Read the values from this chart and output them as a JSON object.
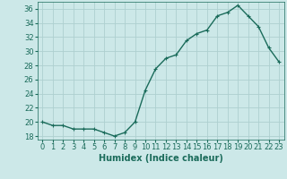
{
  "x": [
    0,
    1,
    2,
    3,
    4,
    5,
    6,
    7,
    8,
    9,
    10,
    11,
    12,
    13,
    14,
    15,
    16,
    17,
    18,
    19,
    20,
    21,
    22,
    23
  ],
  "y": [
    20,
    19.5,
    19.5,
    19,
    19,
    19,
    18.5,
    18,
    18.5,
    20,
    24.5,
    27.5,
    29,
    29.5,
    31.5,
    32.5,
    33,
    35,
    35.5,
    36.5,
    35,
    33.5,
    30.5,
    28.5
  ],
  "line_color": "#1a6b5a",
  "marker": "+",
  "marker_size": 3,
  "linewidth": 1.0,
  "background_color": "#cce8e8",
  "grid_color": "#aed0d0",
  "xlabel": "Humidex (Indice chaleur)",
  "xlabel_fontsize": 7,
  "tick_fontsize": 6,
  "ylim": [
    17.5,
    37.0
  ],
  "xlim": [
    -0.5,
    23.5
  ],
  "yticks": [
    18,
    20,
    22,
    24,
    26,
    28,
    30,
    32,
    34,
    36
  ],
  "xticks": [
    0,
    1,
    2,
    3,
    4,
    5,
    6,
    7,
    8,
    9,
    10,
    11,
    12,
    13,
    14,
    15,
    16,
    17,
    18,
    19,
    20,
    21,
    22,
    23
  ],
  "xtick_labels": [
    "0",
    "1",
    "2",
    "3",
    "4",
    "5",
    "6",
    "7",
    "8",
    "9",
    "10",
    "11",
    "12",
    "13",
    "14",
    "15",
    "16",
    "17",
    "18",
    "19",
    "20",
    "21",
    "22",
    "23"
  ]
}
